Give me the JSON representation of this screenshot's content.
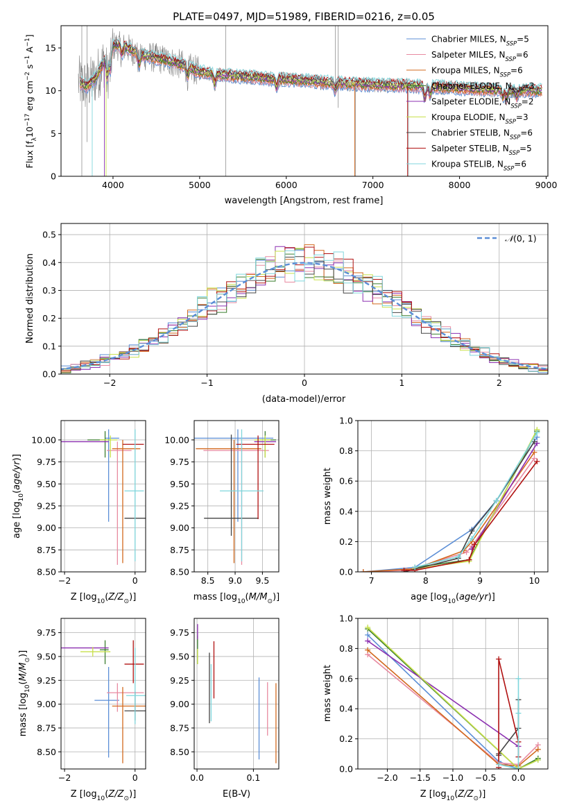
{
  "title": "PLATE=0497, MJD=51989, FIBERID=0216, z=0.05",
  "colors": {
    "Chabrier MILES": "#5b8ed6",
    "Salpeter MILES": "#e88aa0",
    "Kroupa MILES": "#d2691e",
    "Chabrier ELODIE": "#3a7d2e",
    "Salpeter ELODIE": "#8b2fb0",
    "Kroupa ELODIE": "#c8e04a",
    "Chabrier STELIB": "#444444",
    "Salpeter STELIB": "#b01010",
    "Kroupa STELIB": "#7fd6dc",
    "data": "#808080",
    "gaussian": "#5b8ed6"
  },
  "chart_data": [
    {
      "id": "spectrum",
      "type": "line",
      "title": "PLATE=0497, MJD=51989, FIBERID=0216, z=0.05",
      "xlabel": "wavelength [Angstrom, rest frame]",
      "ylabel": "Flux [f_λ 10^-17 erg cm^-2 s^-1 A^-1]",
      "xlim": [
        3400,
        9020
      ],
      "ylim": [
        0,
        17.6
      ],
      "xticks": [
        4000,
        5000,
        6000,
        7000,
        8000,
        9000
      ],
      "yticks": [
        0,
        5,
        10,
        15
      ],
      "legend_position": "top-right",
      "legend": [
        {
          "name": "Chabrier MILES",
          "nssp": "5"
        },
        {
          "name": "Salpeter MILES",
          "nssp": "6"
        },
        {
          "name": "Kroupa MILES",
          "nssp": "6"
        },
        {
          "name": "Chabrier ELODIE",
          "nssp": "3"
        },
        {
          "name": "Salpeter ELODIE",
          "nssp": "2"
        },
        {
          "name": "Kroupa ELODIE",
          "nssp": "3"
        },
        {
          "name": "Chabrier STELIB",
          "nssp": "6"
        },
        {
          "name": "Salpeter STELIB",
          "nssp": "5"
        },
        {
          "name": "Kroupa STELIB",
          "nssp": "6"
        }
      ],
      "continuum": {
        "x": [
          3600,
          3700,
          3800,
          3900,
          4000,
          4100,
          4200,
          4300,
          4400,
          4500,
          4600,
          4700,
          4800,
          4900,
          5000,
          5200,
          5400,
          5600,
          5800,
          6000,
          6200,
          6400,
          6600,
          6800,
          7000,
          7200,
          7400,
          7600,
          7800,
          8000,
          8200,
          8400,
          8600,
          8800,
          8950
        ],
        "y": [
          11,
          10.5,
          11.5,
          13.5,
          15.2,
          15.3,
          14.8,
          14.3,
          14.0,
          13.8,
          13.6,
          13.3,
          13.0,
          12.6,
          12.2,
          11.9,
          11.7,
          11.6,
          11.4,
          11.3,
          11.2,
          11.0,
          10.9,
          10.8,
          10.7,
          10.6,
          10.6,
          10.5,
          10.4,
          10.3,
          10.2,
          10.1,
          10.0,
          10.0,
          10.0
        ]
      }
    },
    {
      "id": "residuals",
      "type": "histogram",
      "xlabel": "(data-model)/error",
      "ylabel": "Normed distribution",
      "xlim": [
        -2.5,
        2.5
      ],
      "ylim": [
        0,
        0.54
      ],
      "xticks": [
        -2,
        -1,
        0,
        1,
        2
      ],
      "yticks": [
        0.0,
        0.1,
        0.2,
        0.3,
        0.4,
        0.5
      ],
      "grid": true,
      "bin_width": 0.1,
      "legend_position": "top-right",
      "legend_label": "N(0,1)",
      "gaussian": {
        "mu": 0,
        "sigma": 1
      }
    },
    {
      "id": "age-vs-Z",
      "type": "errorbar",
      "xlabel": "Z [log10(Z/Z⊙)]",
      "ylabel": "age  [log10(age/yr)]",
      "xlim": [
        -2.1,
        0.3
      ],
      "ylim": [
        8.5,
        10.22
      ],
      "xticks": [
        -2,
        0
      ],
      "yticks": [
        8.5,
        8.75,
        9.0,
        9.25,
        9.5,
        9.75,
        10.0
      ],
      "grid": true,
      "points": [
        {
          "model": "Chabrier MILES",
          "x": -0.75,
          "xerr": [
            0.1,
            0.3
          ],
          "y": 10.02,
          "yerr": [
            0.95,
            0.1
          ]
        },
        {
          "model": "Salpeter MILES",
          "x": -0.5,
          "xerr": [
            0.3,
            0.4
          ],
          "y": 9.88,
          "yerr": [
            1.3,
            0.1
          ]
        },
        {
          "model": "Kroupa MILES",
          "x": -0.35,
          "xerr": [
            0.3,
            0.5
          ],
          "y": 9.9,
          "yerr": [
            1.3,
            0.1
          ]
        },
        {
          "model": "Chabrier ELODIE",
          "x": -0.85,
          "xerr": [
            0.5,
            0.15
          ],
          "y": 10.0,
          "yerr": [
            0.2,
            0.1
          ]
        },
        {
          "model": "Salpeter ELODIE",
          "x": -1.6,
          "xerr": [
            0.5,
            0.85
          ],
          "y": 9.98,
          "yerr": [
            0.0,
            0.0
          ]
        },
        {
          "model": "Kroupa ELODIE",
          "x": -0.7,
          "xerr": [
            0.3,
            0.2
          ],
          "y": 10.0,
          "yerr": [
            0.2,
            0.05
          ]
        },
        {
          "model": "Chabrier STELIB",
          "x": 0.0,
          "xerr": [
            0.3,
            0.3
          ],
          "y": 9.11,
          "yerr": [
            0.0,
            0.0
          ]
        },
        {
          "model": "Salpeter STELIB",
          "x": -0.05,
          "xerr": [
            0.3,
            0.3
          ],
          "y": 9.95,
          "yerr": [
            0.0,
            0.0
          ]
        },
        {
          "model": "Kroupa STELIB",
          "x": 0.0,
          "xerr": [
            0.3,
            0.25
          ],
          "y": 9.42,
          "yerr": [
            0.8,
            0.7
          ]
        }
      ]
    },
    {
      "id": "age-vs-mass",
      "type": "errorbar",
      "xlabel": "mass [log10(M/M⊙)]",
      "xlim": [
        8.25,
        9.8
      ],
      "ylim": [
        8.5,
        10.22
      ],
      "xticks": [
        8.5,
        9.0,
        9.5
      ],
      "yticks": [
        8.5,
        8.75,
        9.0,
        9.25,
        9.5,
        9.75,
        10.0
      ],
      "grid": true,
      "points": [
        {
          "model": "Chabrier MILES",
          "x": 9.05,
          "xerr": [
            0.8,
            0.65
          ],
          "y": 10.02,
          "yerr": [
            0.95,
            0.1
          ]
        },
        {
          "model": "Salpeter MILES",
          "x": 9.12,
          "xerr": [
            0.7,
            0.5
          ],
          "y": 9.88,
          "yerr": [
            1.3,
            0.1
          ]
        },
        {
          "model": "Kroupa MILES",
          "x": 8.98,
          "xerr": [
            0.7,
            0.5
          ],
          "y": 9.9,
          "yerr": [
            1.3,
            0.1
          ]
        },
        {
          "model": "Chabrier ELODIE",
          "x": 9.55,
          "xerr": [
            0.1,
            0.2
          ],
          "y": 10.0,
          "yerr": [
            0.2,
            0.1
          ]
        },
        {
          "model": "Salpeter ELODIE",
          "x": 9.6,
          "xerr": [
            0.25,
            0.15
          ],
          "y": 9.98,
          "yerr": [
            0.0,
            0.0
          ]
        },
        {
          "model": "Kroupa ELODIE",
          "x": 9.55,
          "xerr": [
            0.2,
            0.1
          ],
          "y": 10.0,
          "yerr": [
            0.2,
            0.05
          ]
        },
        {
          "model": "Chabrier STELIB",
          "x": 8.93,
          "xerr": [
            0.5,
            0.5
          ],
          "y": 9.11,
          "yerr": [
            0.2,
            0.95
          ]
        },
        {
          "model": "Salpeter STELIB",
          "x": 9.42,
          "xerr": [
            0.4,
            0.3
          ],
          "y": 9.95,
          "yerr": [
            0.85,
            0.1
          ]
        },
        {
          "model": "Kroupa STELIB",
          "x": 9.12,
          "xerr": [
            0.4,
            0.4
          ],
          "y": 9.42,
          "yerr": [
            0.8,
            0.7
          ]
        }
      ]
    },
    {
      "id": "weight-vs-age",
      "type": "line",
      "xlabel": "age  [log10(age/yr)]",
      "ylabel": "mass weight",
      "xlim": [
        6.75,
        10.25
      ],
      "ylim": [
        0,
        1.0
      ],
      "xticks": [
        7,
        8,
        9,
        10
      ],
      "yticks": [
        0.0,
        0.2,
        0.4,
        0.6,
        0.8,
        1.0
      ],
      "grid": true,
      "series": [
        {
          "model": "Chabrier MILES",
          "x": [
            6.85,
            7.8,
            8.85,
            9.3,
            10.05
          ],
          "y": [
            0.0,
            0.03,
            0.28,
            0.47,
            0.89
          ]
        },
        {
          "model": "Salpeter MILES",
          "x": [
            6.85,
            7.65,
            8.75,
            8.85,
            10.0
          ],
          "y": [
            0.0,
            0.01,
            0.13,
            0.17,
            0.75
          ]
        },
        {
          "model": "Kroupa MILES",
          "x": [
            6.85,
            7.8,
            8.7,
            8.85,
            10.0
          ],
          "y": [
            0.0,
            0.02,
            0.14,
            0.2,
            0.79
          ]
        },
        {
          "model": "Chabrier ELODIE",
          "x": [
            7.8,
            8.8,
            10.05
          ],
          "y": [
            0.03,
            0.08,
            0.93
          ]
        },
        {
          "model": "Salpeter ELODIE",
          "x": [
            8.85,
            10.05
          ],
          "y": [
            0.15,
            0.85
          ]
        },
        {
          "model": "Kroupa ELODIE",
          "x": [
            7.8,
            8.8,
            10.05
          ],
          "y": [
            0.02,
            0.07,
            0.94
          ]
        },
        {
          "model": "Chabrier STELIB",
          "x": [
            7.6,
            8.6,
            8.85,
            9.3,
            10.0
          ],
          "y": [
            0.0,
            0.09,
            0.27,
            0.47,
            0.86
          ]
        },
        {
          "model": "Salpeter STELIB",
          "x": [
            7.6,
            7.8,
            8.8,
            8.9,
            10.05
          ],
          "y": [
            0.01,
            0.01,
            0.08,
            0.18,
            0.73
          ]
        },
        {
          "model": "Kroupa STELIB",
          "x": [
            7.8,
            8.6,
            8.85,
            9.3,
            10.05
          ],
          "y": [
            0.03,
            0.1,
            0.22,
            0.47,
            0.92
          ]
        }
      ]
    },
    {
      "id": "mass-vs-Z",
      "type": "errorbar",
      "xlabel": "Z [log10(Z/Z⊙)]",
      "ylabel": "mass [log10(M/M⊙)]",
      "xlim": [
        -2.1,
        0.3
      ],
      "ylim": [
        8.32,
        9.9
      ],
      "xticks": [
        -2,
        0
      ],
      "yticks": [
        8.5,
        8.75,
        9.0,
        9.25,
        9.5,
        9.75
      ],
      "grid": true,
      "points": [
        {
          "model": "Chabrier MILES",
          "x": -0.75,
          "xerr": [
            0.4,
            0.3
          ],
          "y": 9.04,
          "yerr": [
            0.6,
            0.35
          ]
        },
        {
          "model": "Salpeter MILES",
          "x": -0.5,
          "xerr": [
            0.3,
            0.75
          ],
          "y": 9.12,
          "yerr": [
            0.2,
            0.1
          ]
        },
        {
          "model": "Kroupa MILES",
          "x": -0.35,
          "xerr": [
            0.3,
            0.65
          ],
          "y": 8.98,
          "yerr": [
            0.6,
            0.2
          ]
        },
        {
          "model": "Chabrier ELODIE",
          "x": -0.85,
          "xerr": [
            0.15,
            0.1
          ],
          "y": 9.57,
          "yerr": [
            0.15,
            0.1
          ]
        },
        {
          "model": "Salpeter ELODIE",
          "x": -1.6,
          "xerr": [
            0.5,
            0.85
          ],
          "y": 9.59,
          "yerr": [
            0.0,
            0.0
          ]
        },
        {
          "model": "Kroupa ELODIE",
          "x": -1.2,
          "xerr": [
            0.35,
            0.5
          ],
          "y": 9.55,
          "yerr": [
            0.05,
            0.05
          ]
        },
        {
          "model": "Chabrier STELIB",
          "x": 0.0,
          "xerr": [
            0.3,
            0.3
          ],
          "y": 8.93,
          "yerr": [
            0.1,
            0.2
          ]
        },
        {
          "model": "Salpeter STELIB",
          "x": -0.05,
          "xerr": [
            0.25,
            0.3
          ],
          "y": 9.42,
          "yerr": [
            0.2,
            0.25
          ]
        },
        {
          "model": "Kroupa STELIB",
          "x": 0.0,
          "xerr": [
            0.25,
            0.3
          ],
          "y": 9.09,
          "yerr": [
            0.3,
            0.5
          ]
        }
      ]
    },
    {
      "id": "mass-vs-EBV",
      "type": "errorbar",
      "xlabel": "E(B-V)",
      "xlim": [
        -0.005,
        0.145
      ],
      "ylim": [
        8.32,
        9.9
      ],
      "xticks": [
        0.0,
        0.1
      ],
      "yticks": [
        8.5,
        8.75,
        9.0,
        9.25,
        9.5,
        9.75
      ],
      "grid": true,
      "points": [
        {
          "model": "Chabrier MILES",
          "x": 0.11,
          "y": 8.85,
          "yerr": [
            0.43,
            0.43
          ]
        },
        {
          "model": "Salpeter MILES",
          "x": 0.125,
          "y": 8.95,
          "yerr": [
            0.28,
            0.28
          ]
        },
        {
          "model": "Kroupa MILES",
          "x": 0.14,
          "y": 8.8,
          "yerr": [
            0.42,
            0.42
          ]
        },
        {
          "model": "Chabrier ELODIE",
          "x": 0.001,
          "y": 9.57,
          "yerr": [
            0.15,
            0.15
          ]
        },
        {
          "model": "Salpeter ELODIE",
          "x": 0.001,
          "y": 9.76,
          "yerr": [
            0.08,
            0.08
          ]
        },
        {
          "model": "Kroupa ELODIE",
          "x": 0.001,
          "y": 9.5,
          "yerr": [
            0.08,
            0.08
          ]
        },
        {
          "model": "Chabrier STELIB",
          "x": 0.022,
          "y": 9.17,
          "yerr": [
            0.37,
            0.37
          ]
        },
        {
          "model": "Salpeter STELIB",
          "x": 0.03,
          "y": 9.36,
          "yerr": [
            0.3,
            0.3
          ]
        },
        {
          "model": "Kroupa STELIB",
          "x": 0.025,
          "y": 9.12,
          "yerr": [
            0.3,
            0.3
          ]
        }
      ]
    },
    {
      "id": "weight-vs-Z",
      "type": "line",
      "xlabel": "Z [log10(Z/Z⊙)]",
      "ylabel": "mass weight",
      "xlim": [
        -2.45,
        0.45
      ],
      "ylim": [
        0,
        1.0
      ],
      "xticks": [
        -2.0,
        -1.5,
        -1.0,
        -0.5,
        0.0
      ],
      "yticks": [
        0.0,
        0.2,
        0.4,
        0.6,
        0.8,
        1.0
      ],
      "grid": true,
      "series": [
        {
          "model": "Chabrier MILES",
          "x": [
            -2.3,
            -0.3,
            0.0,
            0.3
          ],
          "y": [
            0.89,
            0.05,
            0.0,
            0.06
          ]
        },
        {
          "model": "Salpeter MILES",
          "x": [
            -2.3,
            -0.3,
            0.0,
            0.3
          ],
          "y": [
            0.76,
            0.04,
            0.03,
            0.16
          ]
        },
        {
          "model": "Kroupa MILES",
          "x": [
            -2.3,
            -0.3,
            0.0,
            0.3
          ],
          "y": [
            0.79,
            0.03,
            0.02,
            0.13
          ]
        },
        {
          "model": "Chabrier ELODIE",
          "x": [
            -2.3,
            0.0,
            0.3
          ],
          "y": [
            0.93,
            0.0,
            0.07
          ]
        },
        {
          "model": "Salpeter ELODIE",
          "x": [
            -2.3,
            0.0
          ],
          "y": [
            0.85,
            0.15
          ]
        },
        {
          "model": "Kroupa ELODIE",
          "x": [
            -2.3,
            0.0,
            0.3
          ],
          "y": [
            0.94,
            0.0,
            0.06
          ]
        },
        {
          "model": "Chabrier STELIB",
          "x": [
            -0.3,
            -0.3,
            0.0,
            0.0
          ],
          "y": [
            0.09,
            0.1,
            0.27,
            0.46
          ]
        },
        {
          "model": "Salpeter STELIB",
          "x": [
            -0.3,
            -0.3,
            0.0,
            0.0
          ],
          "y": [
            0.01,
            0.73,
            0.18,
            0.08
          ]
        },
        {
          "model": "Kroupa STELIB",
          "x": [
            -0.3,
            0.0,
            0.0,
            0.0
          ],
          "y": [
            0.03,
            0.0,
            0.37,
            0.6
          ]
        }
      ]
    }
  ]
}
